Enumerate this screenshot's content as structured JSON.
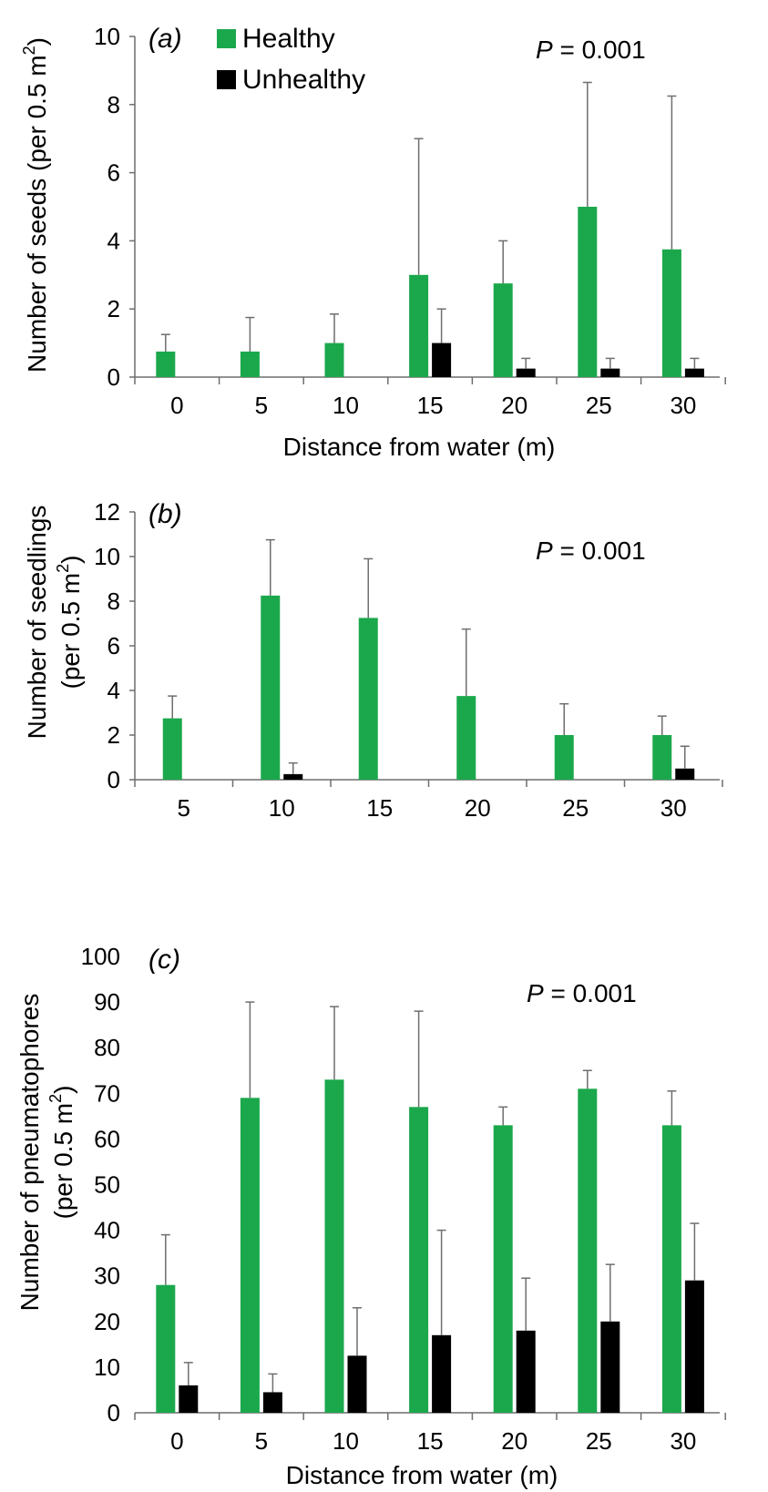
{
  "chart_data": [
    {
      "type": "bar",
      "panel_label": "(a)",
      "categories": [
        "0",
        "5",
        "10",
        "15",
        "20",
        "25",
        "30"
      ],
      "series": [
        {
          "name": "Healthy",
          "values": [
            0.75,
            0.75,
            1.0,
            3.0,
            2.75,
            5.0,
            3.75
          ],
          "errors": [
            0.5,
            1.0,
            0.85,
            4.0,
            1.25,
            3.65,
            4.5
          ]
        },
        {
          "name": "Unhealthy",
          "values": [
            0,
            0,
            0,
            1.0,
            0.25,
            0.25,
            0.25
          ],
          "errors": [
            0,
            0,
            0,
            1.0,
            0.3,
            0.3,
            0.3
          ]
        }
      ],
      "ylabel_main": "Number of seeds (per 0.5 m",
      "ylabel_sup": "2",
      "ylabel_end": ")",
      "xlabel": "Distance from water (m)",
      "yticks": [
        0,
        2,
        4,
        6,
        8,
        10
      ],
      "ylim": [
        0,
        10
      ],
      "p_label": "P",
      "p_value": " = 0.001",
      "legend": [
        "Healthy",
        "Unhealthy"
      ],
      "legend_position": "top-left"
    },
    {
      "type": "bar",
      "panel_label": "(b)",
      "categories": [
        "5",
        "10",
        "15",
        "20",
        "25",
        "30"
      ],
      "series": [
        {
          "name": "Healthy",
          "values": [
            2.75,
            8.25,
            7.25,
            3.75,
            2.0,
            2.0
          ],
          "errors": [
            1.0,
            2.5,
            2.65,
            3.0,
            1.4,
            0.85
          ]
        },
        {
          "name": "Unhealthy",
          "values": [
            0,
            0.25,
            0,
            0,
            0,
            0.5
          ],
          "errors": [
            0,
            0.5,
            0,
            0,
            0,
            1.0
          ]
        }
      ],
      "ylabel_line1": "Number of seedlings",
      "ylabel_line2_main": "(per 0.5 m",
      "ylabel_sup": "2",
      "ylabel_end": ")",
      "xlabel": "",
      "yticks": [
        0,
        2,
        4,
        6,
        8,
        10,
        12
      ],
      "ylim": [
        0,
        12
      ],
      "p_label": "P",
      "p_value": " = 0.001"
    },
    {
      "type": "bar",
      "panel_label": "(c)",
      "categories": [
        "0",
        "5",
        "10",
        "15",
        "20",
        "25",
        "30"
      ],
      "series": [
        {
          "name": "Healthy",
          "values": [
            28,
            69,
            73,
            67,
            63,
            71,
            63
          ],
          "errors": [
            11,
            21,
            16,
            21,
            4,
            4,
            7.5
          ]
        },
        {
          "name": "Unhealthy",
          "values": [
            6,
            4.5,
            12.5,
            17,
            18,
            20,
            29
          ],
          "errors": [
            5,
            4,
            10.5,
            23,
            11.5,
            12.5,
            12.5
          ]
        }
      ],
      "ylabel_line1": "Number of pneumatophores",
      "ylabel_line2_main": "(per 0.5 m",
      "ylabel_sup": "2",
      "ylabel_end": ")",
      "xlabel": "Distance from water (m)",
      "yticks": [
        0,
        10,
        20,
        30,
        40,
        50,
        60,
        70,
        80,
        90,
        100
      ],
      "ylim": [
        0,
        100
      ],
      "p_label": "P",
      "p_value": " = 0.001"
    }
  ],
  "colors": {
    "healthy": "#1ba84c",
    "unhealthy": "#000000",
    "axis": "#6e6e6e",
    "errorbar": "#6e6e6e"
  }
}
